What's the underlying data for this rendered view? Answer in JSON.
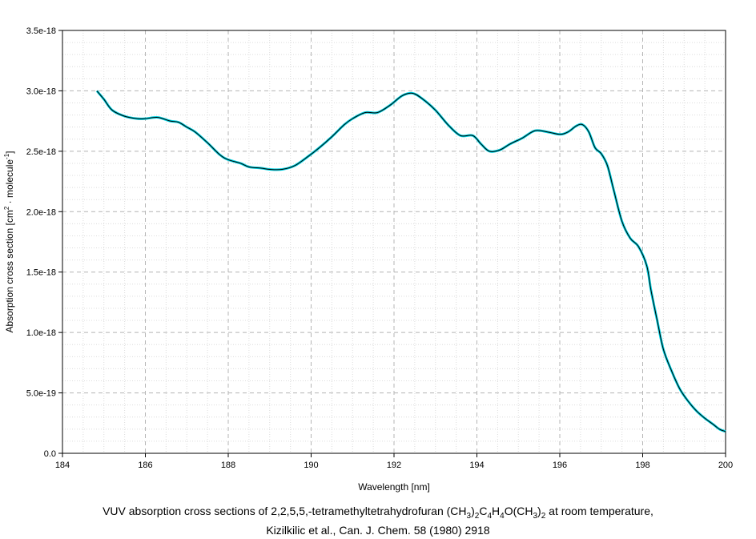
{
  "chart_data": {
    "type": "line",
    "xlabel": "Wavelength [nm]",
    "ylabel_parts": {
      "prefix": "Absorption cross section [cm",
      "sup1": "2",
      "middle": " · molecule",
      "sup2": "-1",
      "suffix": "]"
    },
    "xlim": [
      184,
      200
    ],
    "ylim": [
      0,
      3.5e-18
    ],
    "xticks": [
      "184",
      "186",
      "188",
      "190",
      "192",
      "194",
      "196",
      "198",
      "200"
    ],
    "xtick_values": [
      184,
      186,
      188,
      190,
      192,
      194,
      196,
      198,
      200
    ],
    "yticks": [
      "0.0",
      "5.0e-19",
      "1.0e-18",
      "1.5e-18",
      "2.0e-18",
      "2.5e-18",
      "3.0e-18",
      "3.5e-18"
    ],
    "ytick_values": [
      0,
      5e-19,
      1e-18,
      1.5e-18,
      2e-18,
      2.5e-18,
      3e-18,
      3.5e-18
    ],
    "grid": true,
    "series": [
      {
        "line_color": "#000000",
        "marker_color": "#00d0e0",
        "x": [
          184.83,
          185.0,
          185.2,
          185.5,
          185.8,
          186.0,
          186.3,
          186.6,
          186.8,
          187.0,
          187.2,
          187.5,
          187.8,
          188.0,
          188.3,
          188.5,
          188.8,
          189.0,
          189.3,
          189.6,
          189.9,
          190.2,
          190.5,
          190.8,
          191.0,
          191.3,
          191.6,
          191.9,
          192.2,
          192.45,
          192.7,
          193.0,
          193.3,
          193.6,
          193.9,
          194.1,
          194.3,
          194.55,
          194.8,
          195.1,
          195.4,
          195.7,
          196.0,
          196.2,
          196.4,
          196.55,
          196.7,
          196.85,
          197.0,
          197.15,
          197.3,
          197.5,
          197.7,
          197.9,
          198.1,
          198.2,
          198.35,
          198.5,
          198.7,
          198.9,
          199.1,
          199.3,
          199.5,
          199.7,
          199.85,
          200.0
        ],
        "y": [
          3e-18,
          2.93e-18,
          2.84e-18,
          2.79e-18,
          2.77e-18,
          2.77e-18,
          2.78e-18,
          2.75e-18,
          2.74e-18,
          2.7e-18,
          2.66e-18,
          2.57e-18,
          2.47e-18,
          2.43e-18,
          2.4e-18,
          2.37e-18,
          2.36e-18,
          2.35e-18,
          2.35e-18,
          2.38e-18,
          2.45e-18,
          2.53e-18,
          2.62e-18,
          2.72e-18,
          2.77e-18,
          2.82e-18,
          2.82e-18,
          2.88e-18,
          2.96e-18,
          2.98e-18,
          2.93e-18,
          2.84e-18,
          2.72e-18,
          2.63e-18,
          2.63e-18,
          2.56e-18,
          2.5e-18,
          2.51e-18,
          2.56e-18,
          2.61e-18,
          2.67e-18,
          2.66e-18,
          2.64e-18,
          2.66e-18,
          2.71e-18,
          2.72e-18,
          2.66e-18,
          2.53e-18,
          2.48e-18,
          2.38e-18,
          2.18e-18,
          1.92e-18,
          1.78e-18,
          1.71e-18,
          1.55e-18,
          1.35e-18,
          1.1e-18,
          8.6e-19,
          6.8e-19,
          5.3e-19,
          4.3e-19,
          3.5e-19,
          2.9e-19,
          2.4e-19,
          2e-19,
          1.8e-19
        ]
      }
    ]
  },
  "caption": {
    "line1": {
      "text_before": "VUV absorption cross sections of 2,2,5,5,-tetramethyltetrahydrofuran (CH",
      "sub1": "3",
      "text_2": ")",
      "sub2": "2",
      "text_3": "C",
      "sub3": "4",
      "text_4": "H",
      "sub4": "4",
      "text_5": "O(CH",
      "sub5": "3",
      "text_6": ")",
      "sub6": "2",
      "text_after": " at room temperature,"
    },
    "line2": "Kizilkilic et al., Can. J. Chem. 58 (1980) 2918"
  }
}
